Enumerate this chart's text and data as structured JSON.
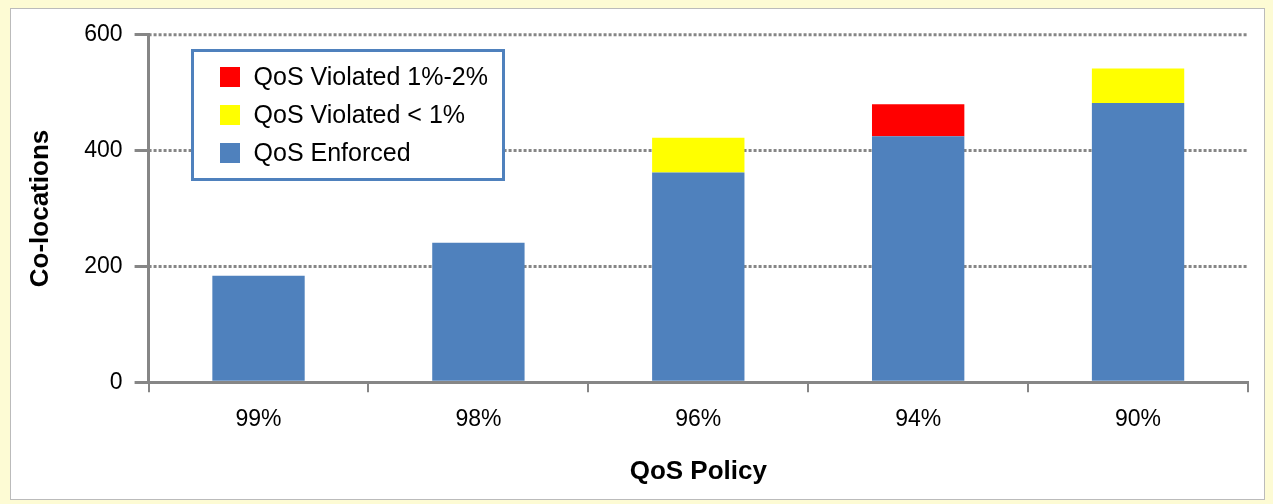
{
  "chart_data": {
    "type": "bar",
    "stacked": true,
    "xlabel": "QoS Policy",
    "ylabel": "Co-locations",
    "categories": [
      "99%",
      "98%",
      "96%",
      "94%",
      "90%"
    ],
    "series": [
      {
        "name": "QoS Enforced",
        "color": "#4f81bd",
        "values": [
          184,
          241,
          362,
          425,
          482
        ]
      },
      {
        "name": "QoS Violated < 1%",
        "color": "#ffff00",
        "values": [
          null,
          null,
          60,
          null,
          60
        ]
      },
      {
        "name": "QoS Violated 1%-2%",
        "color": "#ff0000",
        "values": [
          null,
          null,
          null,
          55,
          null
        ]
      }
    ],
    "ylim": [
      0,
      600
    ],
    "yticks": [
      0,
      200,
      400,
      600
    ],
    "grid": "y",
    "legend": "top left"
  }
}
